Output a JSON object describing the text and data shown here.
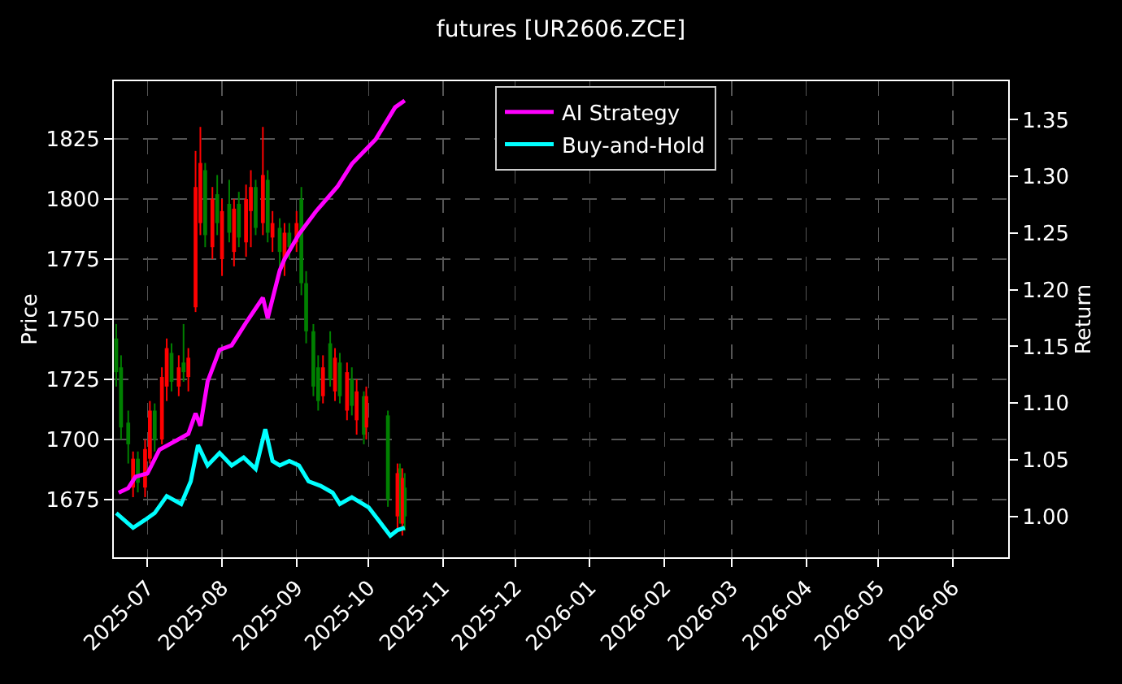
{
  "chart_data": {
    "type": "candlestick",
    "title": "futures [UR2606.ZCE]",
    "ylabel": "Price",
    "y2label": "Return",
    "x": [
      "2025-06-18",
      "2025-06-20",
      "2025-06-23",
      "2025-06-25",
      "2025-06-27",
      "2025-06-30",
      "2025-07-02",
      "2025-07-04",
      "2025-07-07",
      "2025-07-09",
      "2025-07-11",
      "2025-07-14",
      "2025-07-16",
      "2025-07-18",
      "2025-07-21",
      "2025-07-23",
      "2025-07-25",
      "2025-07-28",
      "2025-07-30",
      "2025-08-01",
      "2025-08-04",
      "2025-08-06",
      "2025-08-08",
      "2025-08-11",
      "2025-08-13",
      "2025-08-15",
      "2025-08-18",
      "2025-08-20",
      "2025-08-22",
      "2025-08-25",
      "2025-08-27",
      "2025-08-29",
      "2025-09-01",
      "2025-09-03",
      "2025-09-05",
      "2025-09-08",
      "2025-09-10",
      "2025-09-12",
      "2025-09-15",
      "2025-09-17",
      "2025-09-19",
      "2025-09-22",
      "2025-09-24",
      "2025-09-26",
      "2025-09-29",
      "2025-09-30",
      "2025-10-09",
      "2025-10-13",
      "2025-10-14",
      "2025-10-15",
      "2025-10-16"
    ],
    "ohlc": [
      [
        1742,
        1748,
        1722,
        1728
      ],
      [
        1730,
        1735,
        1700,
        1705
      ],
      [
        1707,
        1712,
        1690,
        1698
      ],
      [
        1680,
        1695,
        1676,
        1692
      ],
      [
        1692,
        1695,
        1678,
        1682
      ],
      [
        1680,
        1700,
        1676,
        1696
      ],
      [
        1692,
        1716,
        1690,
        1712
      ],
      [
        1712,
        1715,
        1695,
        1700
      ],
      [
        1700,
        1730,
        1698,
        1726
      ],
      [
        1722,
        1742,
        1716,
        1738
      ],
      [
        1736,
        1740,
        1720,
        1724
      ],
      [
        1722,
        1735,
        1718,
        1730
      ],
      [
        1732,
        1748,
        1724,
        1728
      ],
      [
        1726,
        1738,
        1720,
        1734
      ],
      [
        1755,
        1820,
        1753,
        1805
      ],
      [
        1790,
        1830,
        1785,
        1815
      ],
      [
        1812,
        1815,
        1780,
        1785
      ],
      [
        1780,
        1805,
        1775,
        1800
      ],
      [
        1802,
        1810,
        1785,
        1790
      ],
      [
        1775,
        1800,
        1768,
        1795
      ],
      [
        1798,
        1808,
        1782,
        1786
      ],
      [
        1778,
        1800,
        1772,
        1796
      ],
      [
        1798,
        1803,
        1780,
        1784
      ],
      [
        1782,
        1806,
        1776,
        1800
      ],
      [
        1795,
        1812,
        1780,
        1805
      ],
      [
        1805,
        1808,
        1785,
        1788
      ],
      [
        1790,
        1830,
        1785,
        1810
      ],
      [
        1808,
        1812,
        1782,
        1786
      ],
      [
        1784,
        1795,
        1778,
        1790
      ],
      [
        1788,
        1792,
        1770,
        1778
      ],
      [
        1775,
        1790,
        1768,
        1786
      ],
      [
        1786,
        1790,
        1775,
        1780
      ],
      [
        1782,
        1795,
        1778,
        1790
      ],
      [
        1800,
        1805,
        1760,
        1765
      ],
      [
        1765,
        1770,
        1740,
        1745
      ],
      [
        1745,
        1748,
        1718,
        1722
      ],
      [
        1730,
        1735,
        1712,
        1716
      ],
      [
        1718,
        1735,
        1715,
        1730
      ],
      [
        1740,
        1745,
        1722,
        1725
      ],
      [
        1720,
        1738,
        1716,
        1734
      ],
      [
        1732,
        1736,
        1715,
        1718
      ],
      [
        1712,
        1732,
        1708,
        1728
      ],
      [
        1725,
        1730,
        1710,
        1714
      ],
      [
        1708,
        1725,
        1702,
        1720
      ],
      [
        1718,
        1720,
        1698,
        1702
      ],
      [
        1705,
        1722,
        1700,
        1718
      ],
      [
        1710,
        1712,
        1672,
        1675
      ],
      [
        1668,
        1690,
        1662,
        1686
      ],
      [
        1688,
        1690,
        1665,
        1670
      ],
      [
        1665,
        1688,
        1660,
        1684
      ],
      [
        1680,
        1686,
        1662,
        1668
      ]
    ],
    "colors": [
      "#008000",
      "#008000",
      "#008000",
      "#ff0000",
      "#008000",
      "#ff0000",
      "#ff0000",
      "#008000",
      "#ff0000",
      "#ff0000",
      "#008000",
      "#ff0000",
      "#008000",
      "#ff0000",
      "#ff0000",
      "#ff0000",
      "#008000",
      "#ff0000",
      "#008000",
      "#ff0000",
      "#008000",
      "#ff0000",
      "#008000",
      "#ff0000",
      "#ff0000",
      "#008000",
      "#ff0000",
      "#008000",
      "#ff0000",
      "#008000",
      "#ff0000",
      "#008000",
      "#ff0000",
      "#008000",
      "#008000",
      "#008000",
      "#008000",
      "#ff0000",
      "#008000",
      "#ff0000",
      "#008000",
      "#ff0000",
      "#008000",
      "#ff0000",
      "#008000",
      "#ff0000",
      "#008000",
      "#ff0000",
      "#008000",
      "#ff0000",
      "#008000"
    ],
    "series": [
      {
        "name": "AI Strategy",
        "type": "line",
        "axis": "y2",
        "color": "#ff00ff",
        "x": [
          "2025-06-19",
          "2025-06-23",
          "2025-06-26",
          "2025-07-01",
          "2025-07-06",
          "2025-07-13",
          "2025-07-18",
          "2025-07-21",
          "2025-07-23",
          "2025-07-26",
          "2025-07-31",
          "2025-08-05",
          "2025-08-11",
          "2025-08-18",
          "2025-08-20",
          "2025-08-25",
          "2025-08-27",
          "2025-09-02",
          "2025-09-09",
          "2025-09-18",
          "2025-09-24",
          "2025-10-04",
          "2025-10-12",
          "2025-10-16"
        ],
        "values": [
          1.021,
          1.025,
          1.035,
          1.038,
          1.059,
          1.067,
          1.073,
          1.091,
          1.08,
          1.119,
          1.147,
          1.151,
          1.171,
          1.193,
          1.175,
          1.217,
          1.227,
          1.249,
          1.269,
          1.291,
          1.311,
          1.333,
          1.361,
          1.367
        ]
      },
      {
        "name": "Buy-and-Hold",
        "type": "line",
        "axis": "y2",
        "color": "#00ffff",
        "x": [
          "2025-06-18",
          "2025-06-25",
          "2025-06-30",
          "2025-07-04",
          "2025-07-09",
          "2025-07-15",
          "2025-07-19",
          "2025-07-22",
          "2025-07-26",
          "2025-07-31",
          "2025-08-05",
          "2025-08-10",
          "2025-08-15",
          "2025-08-19",
          "2025-08-22",
          "2025-08-25",
          "2025-08-29",
          "2025-09-02",
          "2025-09-06",
          "2025-09-11",
          "2025-09-16",
          "2025-09-19",
          "2025-09-24",
          "2025-10-01",
          "2025-10-05",
          "2025-10-10",
          "2025-10-13",
          "2025-10-16"
        ],
        "values": [
          1.003,
          0.99,
          0.997,
          1.003,
          1.018,
          1.011,
          1.031,
          1.063,
          1.045,
          1.056,
          1.045,
          1.052,
          1.042,
          1.077,
          1.049,
          1.045,
          1.049,
          1.045,
          1.031,
          1.027,
          1.021,
          1.011,
          1.017,
          1.008,
          0.997,
          0.983,
          0.988,
          0.99
        ]
      }
    ],
    "xlim": [
      "2025-06-17",
      "2026-06-24"
    ],
    "xticks": [
      "2025-07",
      "2025-08",
      "2025-09",
      "2025-10",
      "2025-11",
      "2025-12",
      "2026-01",
      "2026-02",
      "2026-03",
      "2026-04",
      "2026-05",
      "2026-06"
    ],
    "ylim": [
      1651,
      1849
    ],
    "yticks": [
      1675,
      1700,
      1725,
      1750,
      1775,
      1800,
      1825
    ],
    "y2lim": [
      0.964,
      1.384
    ],
    "y2ticks": [
      {
        "value": 1,
        "label": "1.00"
      },
      {
        "value": 1.05,
        "label": "1.05"
      },
      {
        "value": 1.1,
        "label": "1.10"
      },
      {
        "value": 1.15,
        "label": "1.15"
      },
      {
        "value": 1.2,
        "label": "1.20"
      },
      {
        "value": 1.25,
        "label": "1.25"
      },
      {
        "value": 1.3,
        "label": "1.30"
      },
      {
        "value": 1.35,
        "label": "1.35"
      }
    ],
    "grid": true,
    "legend": "top"
  }
}
